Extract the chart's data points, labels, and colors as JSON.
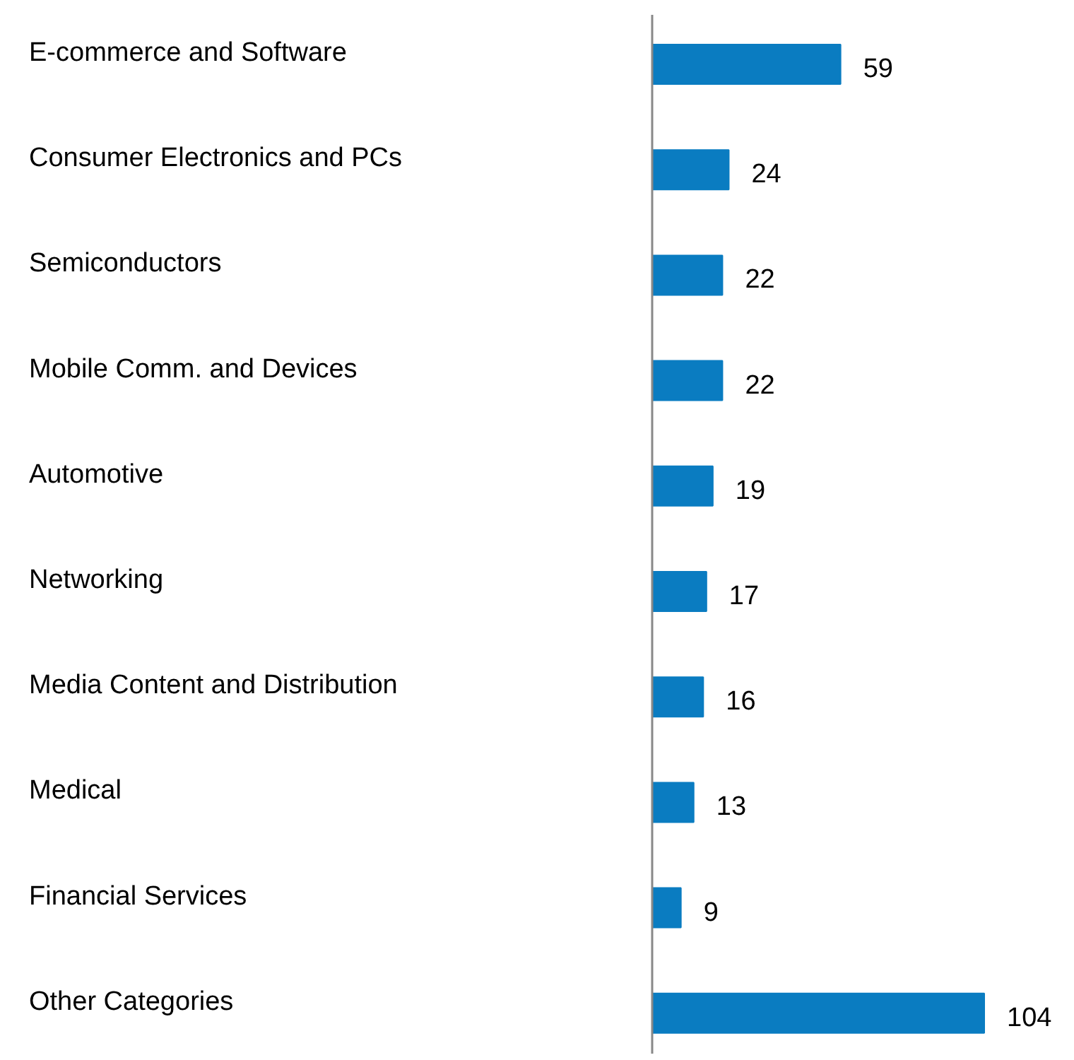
{
  "chart_data": {
    "type": "bar",
    "orientation": "horizontal",
    "categories": [
      "E-commerce and Software",
      "Consumer Electronics and PCs",
      "Semiconductors",
      "Mobile Comm. and Devices",
      "Automotive",
      "Networking",
      "Media Content and Distribution",
      "Medical",
      "Financial Services",
      "Other Categories"
    ],
    "values": [
      59,
      24,
      22,
      22,
      19,
      17,
      16,
      13,
      9,
      104
    ],
    "color": "#0a7cc1",
    "data_labels": true
  }
}
